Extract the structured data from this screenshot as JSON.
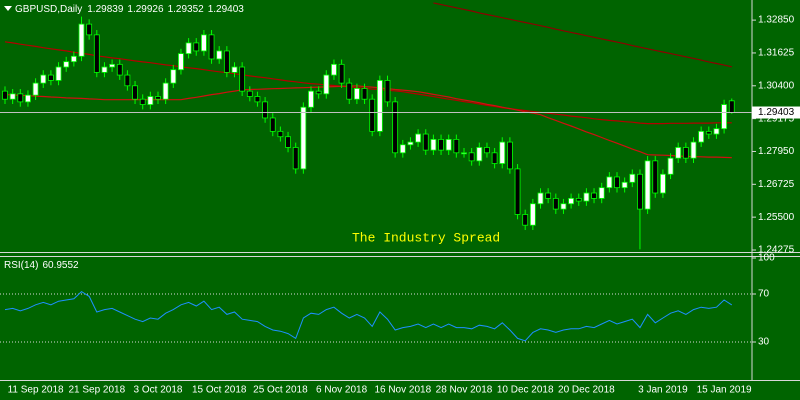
{
  "chart_data": [
    {
      "type": "candlestick",
      "title": "GBPUSD,Daily",
      "annotation": "The Industry Spread",
      "categories": [
        null,
        null,
        null,
        null,
        "11 Sep 2018",
        null,
        null,
        null,
        null,
        null,
        null,
        null,
        "21 Sep 2018",
        null,
        null,
        null,
        null,
        null,
        null,
        null,
        "3 Oct 2018",
        null,
        null,
        null,
        null,
        null,
        null,
        null,
        "15 Oct 2018",
        null,
        null,
        null,
        null,
        null,
        null,
        null,
        "25 Oct 2018",
        null,
        null,
        null,
        null,
        null,
        null,
        null,
        "6 Nov 2018",
        null,
        null,
        null,
        null,
        null,
        null,
        null,
        "16 Nov 2018",
        null,
        null,
        null,
        null,
        null,
        null,
        null,
        "28 Nov 2018",
        null,
        null,
        null,
        null,
        null,
        null,
        null,
        "10 Dec 2018",
        null,
        null,
        null,
        null,
        null,
        null,
        null,
        "20 Dec 2018",
        null,
        null,
        null,
        null,
        null,
        null,
        null,
        null,
        null,
        "3 Jan 2019",
        null,
        null,
        null,
        null,
        null,
        null,
        null,
        "15 Jan 2019",
        null
      ],
      "open": [
        1.302,
        1.299,
        1.301,
        1.298,
        1.3005,
        1.305,
        1.308,
        1.306,
        1.311,
        1.313,
        1.315,
        1.327,
        1.323,
        1.309,
        1.311,
        1.312,
        1.308,
        1.304,
        1.299,
        1.297,
        1.3,
        1.299,
        1.305,
        1.31,
        1.316,
        1.32,
        1.317,
        1.323,
        1.314,
        1.317,
        1.309,
        1.311,
        1.302,
        1.3,
        1.298,
        1.292,
        1.287,
        1.285,
        1.281,
        1.273,
        1.296,
        1.302,
        1.301,
        1.308,
        1.312,
        1.305,
        1.299,
        1.303,
        1.299,
        1.287,
        1.306,
        1.298,
        1.279,
        1.282,
        1.283,
        1.286,
        1.28,
        1.284,
        1.28,
        1.284,
        1.279,
        1.279,
        1.276,
        1.281,
        1.279,
        1.275,
        1.283,
        1.273,
        1.256,
        1.252,
        1.26,
        1.264,
        1.262,
        1.258,
        1.26,
        1.262,
        1.261,
        1.264,
        1.262,
        1.266,
        1.27,
        1.266,
        1.268,
        1.271,
        1.258,
        1.276,
        1.264,
        1.271,
        1.277,
        1.281,
        1.277,
        1.283,
        1.287,
        1.286,
        1.288,
        1.29839
      ],
      "high": [
        1.3038,
        1.3028,
        1.3028,
        1.3023,
        1.3068,
        1.3098,
        1.3098,
        1.3128,
        1.3148,
        1.3168,
        1.3298,
        1.3288,
        1.3248,
        1.3128,
        1.3138,
        1.3138,
        1.3098,
        1.3058,
        1.3008,
        1.3018,
        1.3018,
        1.3068,
        1.3118,
        1.3178,
        1.3218,
        1.3218,
        1.3248,
        1.3248,
        1.3188,
        1.3188,
        1.3128,
        1.3128,
        1.3038,
        1.3018,
        1.2998,
        1.2938,
        1.2888,
        1.2868,
        1.2828,
        1.2978,
        1.3038,
        1.3038,
        1.3098,
        1.3138,
        1.3138,
        1.3068,
        1.3048,
        1.3048,
        1.3008,
        1.3078,
        1.3078,
        1.2998,
        1.2838,
        1.2848,
        1.2878,
        1.2878,
        1.2858,
        1.2858,
        1.2858,
        1.2858,
        1.2808,
        1.2808,
        1.2828,
        1.2828,
        1.2808,
        1.2848,
        1.2848,
        1.2748,
        1.2578,
        1.2618,
        1.2658,
        1.2658,
        1.2638,
        1.2618,
        1.2638,
        1.2638,
        1.2658,
        1.2658,
        1.2678,
        1.2718,
        1.2718,
        1.2698,
        1.2728,
        1.2728,
        1.2778,
        1.2778,
        1.2728,
        1.2788,
        1.2828,
        1.2828,
        1.2848,
        1.2888,
        1.2888,
        1.2898,
        1.2988,
        1.29926
      ],
      "low": [
        1.2972,
        1.2972,
        1.2962,
        1.2962,
        1.2987,
        1.3032,
        1.3042,
        1.3042,
        1.3092,
        1.3112,
        1.3132,
        1.3212,
        1.3072,
        1.3072,
        1.3092,
        1.3062,
        1.3022,
        1.2972,
        1.2952,
        1.2952,
        1.2972,
        1.2972,
        1.3032,
        1.3082,
        1.3142,
        1.3152,
        1.3152,
        1.3122,
        1.3122,
        1.3072,
        1.3072,
        1.3002,
        1.2982,
        1.2962,
        1.2902,
        1.2852,
        1.2832,
        1.2792,
        1.2712,
        1.2712,
        1.2942,
        1.2992,
        1.2992,
        1.3062,
        1.3032,
        1.2972,
        1.2972,
        1.2972,
        1.2852,
        1.2852,
        1.2962,
        1.2772,
        1.2772,
        1.2802,
        1.2812,
        1.2782,
        1.2782,
        1.2782,
        1.2782,
        1.2772,
        1.2772,
        1.2742,
        1.2742,
        1.2772,
        1.2732,
        1.2732,
        1.2712,
        1.2542,
        1.2502,
        1.2502,
        1.2582,
        1.2602,
        1.2562,
        1.2562,
        1.2582,
        1.2592,
        1.2592,
        1.2602,
        1.2602,
        1.2642,
        1.2642,
        1.2642,
        1.2662,
        1.243,
        1.2562,
        1.2622,
        1.2622,
        1.2692,
        1.2752,
        1.2752,
        1.2752,
        1.2812,
        1.2842,
        1.2842,
        1.2862,
        1.29352
      ],
      "close": [
        1.299,
        1.301,
        1.298,
        1.3005,
        1.305,
        1.308,
        1.306,
        1.311,
        1.313,
        1.315,
        1.327,
        1.323,
        1.309,
        1.311,
        1.312,
        1.308,
        1.304,
        1.299,
        1.297,
        1.3,
        1.299,
        1.305,
        1.31,
        1.316,
        1.32,
        1.317,
        1.323,
        1.314,
        1.317,
        1.309,
        1.311,
        1.302,
        1.3,
        1.298,
        1.292,
        1.287,
        1.285,
        1.281,
        1.273,
        1.296,
        1.302,
        1.301,
        1.308,
        1.312,
        1.305,
        1.299,
        1.303,
        1.299,
        1.287,
        1.306,
        1.298,
        1.279,
        1.282,
        1.283,
        1.286,
        1.28,
        1.284,
        1.28,
        1.284,
        1.279,
        1.279,
        1.276,
        1.281,
        1.279,
        1.275,
        1.283,
        1.273,
        1.256,
        1.252,
        1.26,
        1.264,
        1.262,
        1.258,
        1.26,
        1.262,
        1.261,
        1.264,
        1.262,
        1.266,
        1.27,
        1.266,
        1.268,
        1.271,
        1.258,
        1.276,
        1.264,
        1.271,
        1.277,
        1.281,
        1.277,
        1.283,
        1.287,
        1.286,
        1.288,
        1.297,
        1.29403
      ],
      "up_color": "#ffffff",
      "down_color": "#000000",
      "wick_color": "#00ff00",
      "lines": [
        {
          "color": "#b40000",
          "values": [
            1.3204,
            1.32,
            1.3195,
            1.3191,
            1.3187,
            1.3182,
            1.3178,
            1.3174,
            1.317,
            1.3165,
            1.3161,
            1.3157,
            1.3152,
            1.3148,
            1.3144,
            1.3141,
            1.3137,
            1.3133,
            1.3129,
            1.3126,
            1.3122,
            1.3118,
            1.3115,
            1.3111,
            1.3107,
            1.3104,
            1.31,
            1.3096,
            1.3092,
            1.3089,
            1.3085,
            1.3081,
            1.3077,
            1.3073,
            1.307,
            1.3066,
            1.3062,
            1.3058,
            1.3055,
            1.3051,
            1.3048,
            1.3046,
            1.3043,
            1.3041,
            1.3038,
            1.3036,
            1.3033,
            1.3031,
            1.3028,
            1.3026,
            1.3023,
            1.3021,
            1.3018,
            1.3013,
            1.3009,
            1.3004,
            1.3,
            1.2995,
            1.299,
            1.2986,
            1.2981,
            1.2977,
            1.2972,
            1.2967,
            1.2963,
            1.2958,
            1.2955,
            1.2951,
            1.2948,
            1.2944,
            1.2941,
            1.2938,
            1.2934,
            1.2931,
            1.2927,
            1.2924,
            1.2921,
            1.2917,
            1.2914,
            1.2911,
            1.2909,
            1.2906,
            1.2904,
            1.2901,
            1.2899,
            1.2899,
            1.2899,
            1.29,
            1.29,
            1.29,
            1.2901,
            1.2901,
            1.2901,
            1.2902,
            1.2902,
            1.2902
          ]
        },
        {
          "color": "#d01010",
          "values": [
            1.3007,
            1.3006,
            1.3004,
            1.3003,
            1.3001,
            1.3,
            1.2998,
            1.2997,
            1.2995,
            1.2994,
            1.2993,
            1.2991,
            1.299,
            1.2988,
            1.2988,
            1.2988,
            1.2988,
            1.2988,
            1.2988,
            1.2988,
            1.2988,
            1.2988,
            1.2988,
            1.2988,
            1.2993,
            1.2997,
            1.3002,
            1.3007,
            1.3011,
            1.3016,
            1.302,
            1.3025,
            1.3026,
            1.3027,
            1.3028,
            1.3029,
            1.303,
            1.3031,
            1.3032,
            1.3033,
            1.3034,
            1.3035,
            1.3036,
            1.3037,
            1.3038,
            1.3039,
            1.304,
            1.3037,
            1.3035,
            1.3032,
            1.3029,
            1.3026,
            1.3024,
            1.3021,
            1.3018,
            1.3013,
            1.3008,
            1.3003,
            1.2998,
            1.2992,
            1.2987,
            1.2982,
            1.2977,
            1.2971,
            1.2966,
            1.296,
            1.2955,
            1.2949,
            1.2943,
            1.2938,
            1.2932,
            1.2921,
            1.2911,
            1.29,
            1.289,
            1.2879,
            1.2868,
            1.2858,
            1.2847,
            1.2836,
            1.2826,
            1.2815,
            1.2804,
            1.2794,
            1.2783,
            1.2782,
            1.2781,
            1.278,
            1.2778,
            1.2777,
            1.2776,
            1.2775,
            1.2774,
            1.2774,
            1.2773,
            1.2772
          ]
        },
        {
          "color": "#8c0000",
          "values": [
            null,
            null,
            null,
            null,
            null,
            null,
            null,
            null,
            null,
            null,
            null,
            null,
            null,
            null,
            null,
            null,
            null,
            null,
            null,
            null,
            null,
            null,
            null,
            null,
            null,
            null,
            null,
            null,
            null,
            null,
            null,
            null,
            null,
            null,
            null,
            null,
            null,
            null,
            null,
            null,
            null,
            null,
            null,
            null,
            null,
            null,
            null,
            null,
            null,
            null,
            null,
            null,
            null,
            null,
            null,
            null,
            1.3349,
            1.3343,
            1.3337,
            1.3331,
            1.3325,
            1.3319,
            1.3312,
            1.3306,
            1.33,
            1.3294,
            1.3288,
            1.3282,
            1.3276,
            1.327,
            1.3264,
            1.3258,
            1.3251,
            1.3245,
            1.3239,
            1.3233,
            1.3227,
            1.3221,
            1.3215,
            1.3209,
            1.3203,
            1.3197,
            1.319,
            1.3184,
            1.3178,
            1.3172,
            1.3166,
            1.316,
            1.3154,
            1.3148,
            1.3142,
            1.3136,
            1.3129,
            1.3123,
            1.3117,
            1.3111
          ]
        }
      ],
      "ylim": [
        1.242,
        1.336
      ],
      "yticks": [
        {
          "value": 1.3285,
          "label": "1.32850"
        },
        {
          "value": 1.31625,
          "label": "1.31625"
        },
        {
          "value": 1.304,
          "label": "1.30400"
        },
        {
          "value": 1.29175,
          "label": "1.29175"
        },
        {
          "value": 1.2795,
          "label": "1.27950"
        },
        {
          "value": 1.26725,
          "label": "1.26725"
        },
        {
          "value": 1.255,
          "label": "1.25500"
        },
        {
          "value": 1.24275,
          "label": "1.24275"
        }
      ],
      "grid": false
    },
    {
      "type": "line",
      "title": "RSI(14)",
      "color": "#1e90ff",
      "values": [
        57,
        58,
        56,
        58,
        61,
        63,
        61,
        64,
        65,
        66,
        72,
        68,
        55,
        57,
        58,
        55,
        52,
        49,
        47,
        50,
        49,
        54,
        57,
        61,
        63,
        60,
        64,
        57,
        59,
        53,
        55,
        49,
        48,
        47,
        43,
        40,
        39,
        37,
        33,
        50,
        54,
        53,
        57,
        59,
        54,
        50,
        53,
        50,
        43,
        55,
        49,
        40,
        42,
        43,
        45,
        42,
        45,
        42,
        45,
        42,
        42,
        41,
        44,
        43,
        41,
        46,
        40,
        33,
        31,
        38,
        41,
        40,
        38,
        40,
        41,
        41,
        43,
        42,
        45,
        48,
        45,
        47,
        49,
        42,
        53,
        46,
        50,
        54,
        56,
        53,
        57,
        59,
        58,
        59,
        65,
        60.9552
      ],
      "ylim": [
        0,
        100
      ],
      "yticks": [
        30,
        70,
        100
      ],
      "levels": [
        30,
        70
      ]
    }
  ]
}
